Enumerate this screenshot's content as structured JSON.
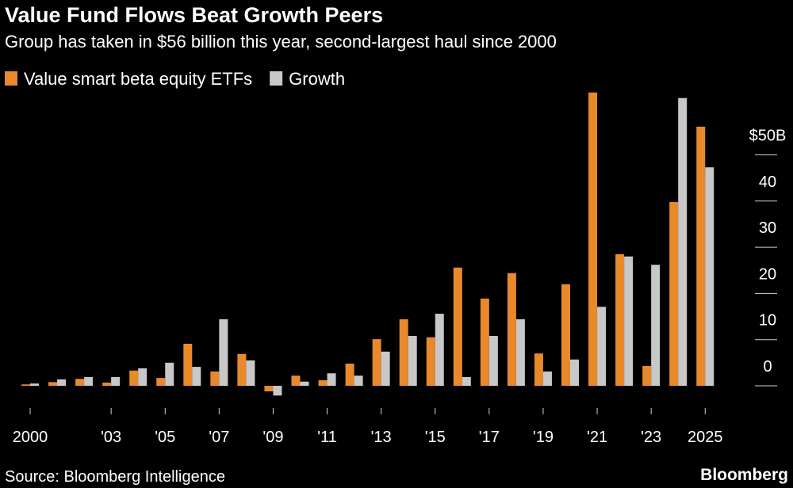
{
  "chart_data": {
    "type": "bar",
    "title": "Value Fund Flows Beat Growth Peers",
    "subtitle": "Group has taken in $56 billion this year, second-largest haul since 2000",
    "source": "Source: Bloomberg Intelligence",
    "brand": "Bloomberg",
    "categories": [
      "2000",
      null,
      null,
      "'03",
      null,
      "'05",
      null,
      "'07",
      null,
      "'09",
      null,
      "'11",
      null,
      "'13",
      null,
      "'15",
      null,
      "'17",
      null,
      "'19",
      null,
      "'21",
      null,
      "'23",
      null,
      "2025"
    ],
    "series": [
      {
        "name": "Value smart beta equity ETFs",
        "color": "#e8892b",
        "values": [
          0.3,
          0.8,
          1.5,
          0.7,
          3.3,
          1.7,
          9.1,
          3.1,
          6.9,
          -1.2,
          2.2,
          1.2,
          4.8,
          10.1,
          14.4,
          10.5,
          25.6,
          18.9,
          24.4,
          7.0,
          22.0,
          63.5,
          28.5,
          4.3,
          39.8,
          56.1
        ]
      },
      {
        "name": "Growth",
        "color": "#c8c8c8",
        "values": [
          0.5,
          1.4,
          1.9,
          1.9,
          3.8,
          5.0,
          4.1,
          14.4,
          5.5,
          -2.1,
          0.9,
          2.7,
          2.2,
          7.4,
          10.8,
          15.6,
          1.9,
          10.8,
          14.4,
          3.1,
          5.7,
          17.1,
          28.0,
          26.2,
          62.3,
          47.3
        ]
      }
    ],
    "ylim": [
      -3,
      65
    ],
    "yticks": [
      0,
      10,
      20,
      30,
      40,
      {
        "value": 50,
        "label": "$50B"
      }
    ],
    "y_axis_side": "right",
    "legend": "top-left"
  }
}
